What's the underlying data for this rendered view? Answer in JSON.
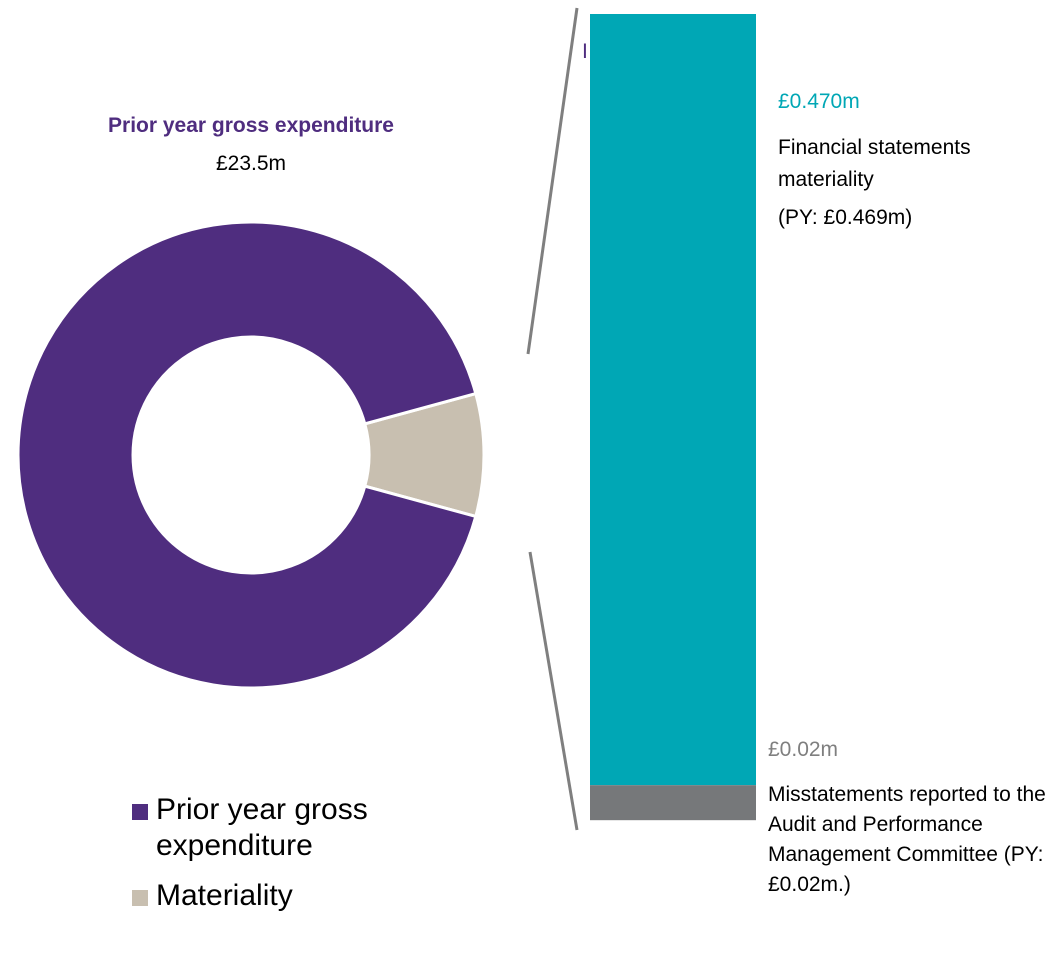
{
  "colors": {
    "expenditure": "#4f2d7f",
    "materiality": "#c8bfb0",
    "fs_bar": "#00a7b5",
    "misstatement_bar": "#76787a",
    "connector": "#7f7f7f",
    "value_grey": "#7f7f7f"
  },
  "chart_data": [
    {
      "type": "pie",
      "style": "donut",
      "title": "Prior year gross expenditure",
      "subtitle": "£23.5m",
      "categories": [
        "Prior year gross expenditure",
        "Materiality"
      ],
      "values": [
        91.5,
        8.5
      ],
      "legend": "bottom-left"
    },
    {
      "type": "bar",
      "orientation": "vertical",
      "stacked": true,
      "series": [
        {
          "value": 0.47,
          "label_value": "£0.470m",
          "label_text": "Financial statements materiality",
          "label_py": "(PY: £0.469m)"
        },
        {
          "value": 0.02,
          "label_value": "£0.02m",
          "label_text": "Misstatements reported to the Audit and Performance Management Committee (PY: £0.02m.)"
        }
      ]
    }
  ],
  "stray_mark": "I"
}
